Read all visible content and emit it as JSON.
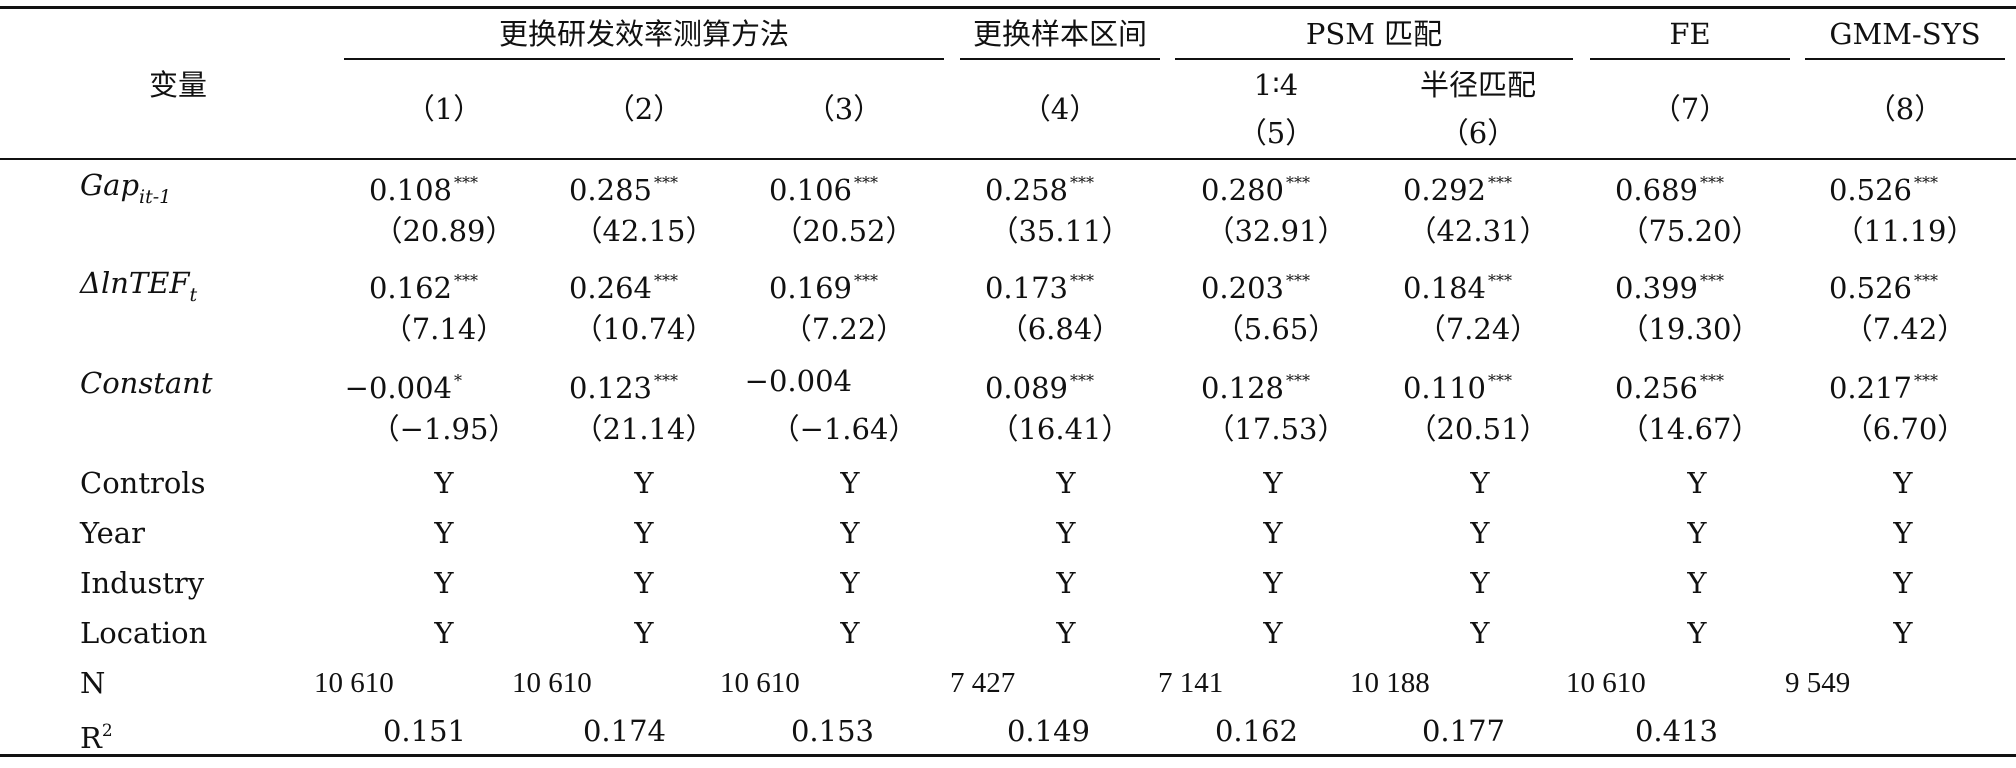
{
  "table": {
    "var_header": "变量",
    "groups": [
      {
        "label": "更换研发效率测算方法"
      },
      {
        "label": "更换样本区间"
      },
      {
        "label": "PSM 匹配"
      },
      {
        "label": "FE"
      },
      {
        "label": "GMM-SYS"
      }
    ],
    "psm_sub": [
      "1∶4",
      "半径匹配"
    ],
    "cols": [
      "（1）",
      "（2）",
      "（3）",
      "（4）",
      "（5）",
      "（6）",
      "（7）",
      "（8）"
    ],
    "rows": {
      "gap": {
        "name": "Gap",
        "sub": "it-1",
        "coef": [
          "0.108",
          "0.285",
          "0.106",
          "0.258",
          "0.280",
          "0.292",
          "0.689",
          "0.526"
        ],
        "stars": [
          "***",
          "***",
          "***",
          "***",
          "***",
          "***",
          "***",
          "***"
        ],
        "t": [
          "（20.89）",
          "（42.15）",
          "（20.52）",
          "（35.11）",
          "（32.91）",
          "（42.31）",
          "（75.20）",
          "（11.19）"
        ]
      },
      "tef": {
        "name_prefix": "ΔlnTEF",
        "sub": "t",
        "coef": [
          "0.162",
          "0.264",
          "0.169",
          "0.173",
          "0.203",
          "0.184",
          "0.399",
          "0.526"
        ],
        "stars": [
          "***",
          "***",
          "***",
          "***",
          "***",
          "***",
          "***",
          "***"
        ],
        "t": [
          "（7.14）",
          "（10.74）",
          "（7.22）",
          "（6.84）",
          "（5.65）",
          "（7.24）",
          "（19.30）",
          "（7.42）"
        ]
      },
      "constant": {
        "name": "Constant",
        "coef": [
          "−0.004",
          "0.123",
          "−0.004",
          "0.089",
          "0.128",
          "0.110",
          "0.256",
          "0.217"
        ],
        "stars": [
          "*",
          "***",
          "",
          "***",
          "***",
          "***",
          "***",
          "***"
        ],
        "t": [
          "（−1.95）",
          "（21.14）",
          "（−1.64）",
          "（16.41）",
          "（17.53）",
          "（20.51）",
          "（14.67）",
          "（6.70）"
        ]
      },
      "yes_rows": [
        {
          "name": "Controls",
          "vals": [
            "Y",
            "Y",
            "Y",
            "Y",
            "Y",
            "Y",
            "Y",
            "Y"
          ]
        },
        {
          "name": "Year",
          "vals": [
            "Y",
            "Y",
            "Y",
            "Y",
            "Y",
            "Y",
            "Y",
            "Y"
          ]
        },
        {
          "name": "Industry",
          "vals": [
            "Y",
            "Y",
            "Y",
            "Y",
            "Y",
            "Y",
            "Y",
            "Y"
          ]
        },
        {
          "name": "Location",
          "vals": [
            "Y",
            "Y",
            "Y",
            "Y",
            "Y",
            "Y",
            "Y",
            "Y"
          ]
        }
      ],
      "n": {
        "name": "N",
        "vals": [
          "10 610",
          "10 610",
          "10 610",
          "7 427",
          "7 141",
          "10 188",
          "10 610",
          "9 549"
        ]
      },
      "r2": {
        "name": "R",
        "sup": "2",
        "vals": [
          "0.151",
          "0.174",
          "0.153",
          "0.149",
          "0.162",
          "0.177",
          "0.413"
        ]
      }
    }
  }
}
